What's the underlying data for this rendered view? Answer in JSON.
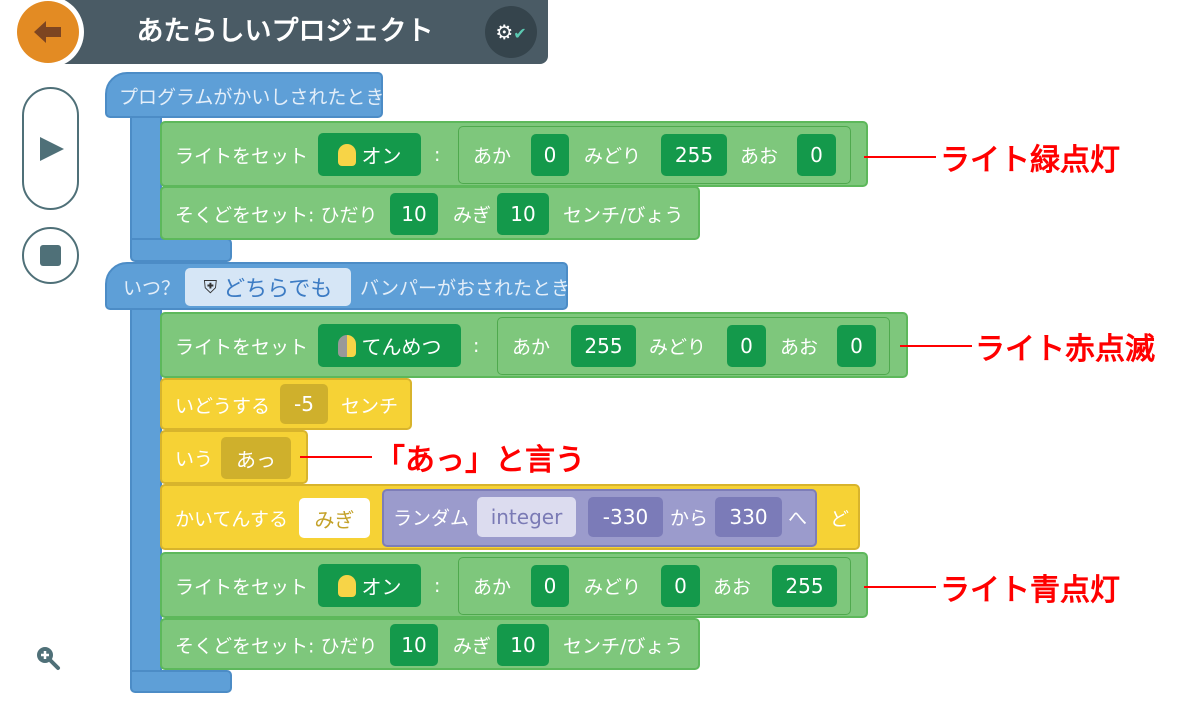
{
  "header": {
    "title": "あたらしいプロジェクト",
    "back_icon": "arrow-left-icon",
    "robot_icon": "robot-check-icon"
  },
  "controls": {
    "play_icon": "play-icon",
    "stop_icon": "stop-icon",
    "zoom_icon": "zoom-in-icon"
  },
  "colors": {
    "motion_blue": "#5e9fd7",
    "light_green": "#7ec77c",
    "action_yellow": "#f6d235",
    "operator_purple": "#9b9bcc",
    "annotation_red": "#ff0000"
  },
  "script1": {
    "hat": "プログラムがかいしされたとき",
    "light": {
      "label": "ライトをセット",
      "mode": "オン",
      "colon": ":",
      "r_label": "あか",
      "r": "0",
      "g_label": "みどり",
      "g": "255",
      "b_label": "あお",
      "b": "0"
    },
    "speed": {
      "label": "そくどをセット: ひだり",
      "left": "10",
      "right_label": "みぎ",
      "right": "10",
      "unit": "センチ/びょう"
    }
  },
  "script2": {
    "hat_prefix": "いつ？",
    "bumper": "どちらでも",
    "hat_suffix": "バンパーがおされたとき",
    "light1": {
      "label": "ライトをセット",
      "mode": "てんめつ",
      "colon": ":",
      "r_label": "あか",
      "r": "255",
      "g_label": "みどり",
      "g": "0",
      "b_label": "あお",
      "b": "0"
    },
    "move": {
      "label": "いどうする",
      "value": "-5",
      "unit": "センチ"
    },
    "say": {
      "label": "いう",
      "value": "あっ"
    },
    "turn": {
      "label": "かいてんする",
      "dir": "みぎ",
      "random": "ランダム",
      "type": "integer",
      "min": "-330",
      "from": "から",
      "max": "330",
      "to": "へ",
      "unit": "ど"
    },
    "light2": {
      "label": "ライトをセット",
      "mode": "オン",
      "colon": ":",
      "r_label": "あか",
      "r": "0",
      "g_label": "みどり",
      "g": "0",
      "b_label": "あお",
      "b": "255"
    },
    "speed": {
      "label": "そくどをセット: ひだり",
      "left": "10",
      "right_label": "みぎ",
      "right": "10",
      "unit": "センチ/びょう"
    }
  },
  "annotations": {
    "green": "ライト緑点灯",
    "red": "ライト赤点滅",
    "say": "「あっ」と言う",
    "blue": "ライト青点灯"
  }
}
